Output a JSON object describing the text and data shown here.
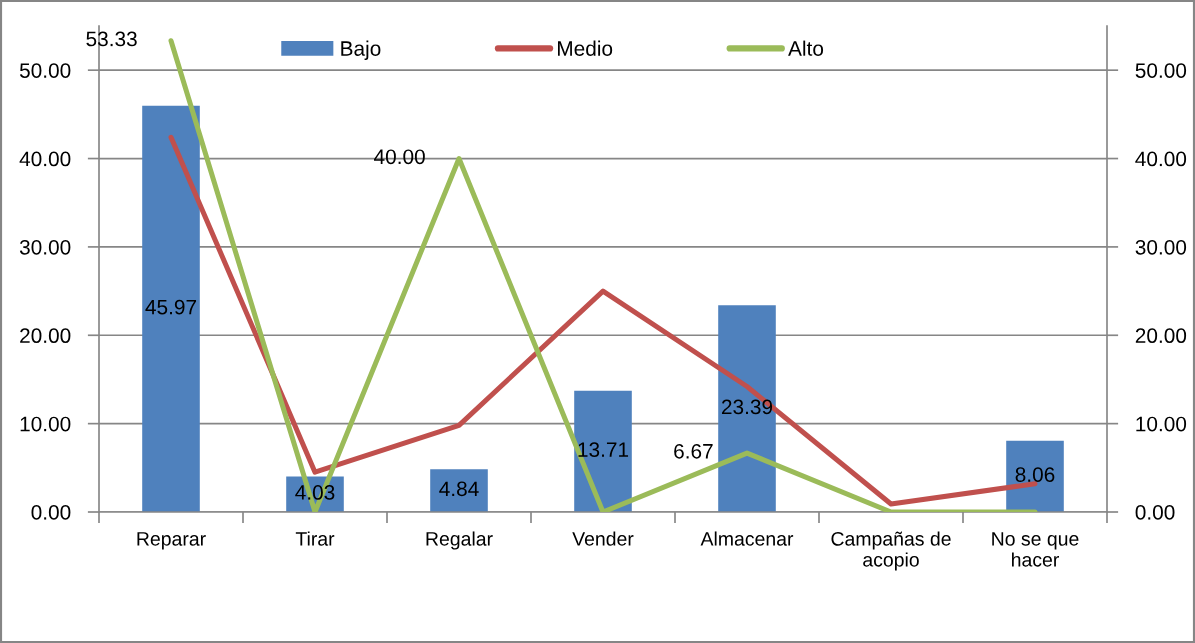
{
  "chart_data": {
    "type": "bar",
    "categories": [
      "Reparar",
      "Tirar",
      "Regalar",
      "Vender",
      "Almacenar",
      "Campañas de\nacopio",
      "No se que\nhacer"
    ],
    "series": [
      {
        "name": "Bajo",
        "color": "#4f81bd",
        "values": [
          45.97,
          4.03,
          4.84,
          13.71,
          23.39,
          null,
          8.06
        ],
        "value_labels": [
          "45.97",
          "4.03",
          "4.84",
          "13.71",
          "23.39",
          null,
          "8.06"
        ]
      },
      {
        "name": "Medio",
        "type": "line",
        "color": "#c0504d",
        "values": [
          42.4,
          4.5,
          9.8,
          25.0,
          14.2,
          0.9,
          3.2
        ]
      },
      {
        "name": "Alto",
        "type": "line",
        "color": "#9bbb59",
        "values": [
          53.33,
          0,
          40.0,
          0,
          6.67,
          0,
          0
        ],
        "value_labels": [
          "53.33",
          null,
          "40.00",
          null,
          "6.67",
          null,
          null
        ]
      }
    ],
    "ylim": [
      0,
      55
    ],
    "yticks": [
      {
        "value": 0,
        "label": "0.00"
      },
      {
        "value": 10,
        "label": "10.00"
      },
      {
        "value": 20,
        "label": "20.00"
      },
      {
        "value": 30,
        "label": "30.00"
      },
      {
        "value": 40,
        "label": "40.00"
      },
      {
        "value": 50,
        "label": "50.00"
      }
    ],
    "y2lim": [
      0,
      55
    ],
    "y2ticks": [
      {
        "value": 0,
        "label": "0.00"
      },
      {
        "value": 10,
        "label": "10.00"
      },
      {
        "value": 20,
        "label": "20.00"
      },
      {
        "value": 30,
        "label": "30.00"
      },
      {
        "value": 40,
        "label": "40.00"
      },
      {
        "value": 50,
        "label": "50.00"
      }
    ],
    "grid": "y",
    "legend": "top",
    "line_style": "solid"
  }
}
